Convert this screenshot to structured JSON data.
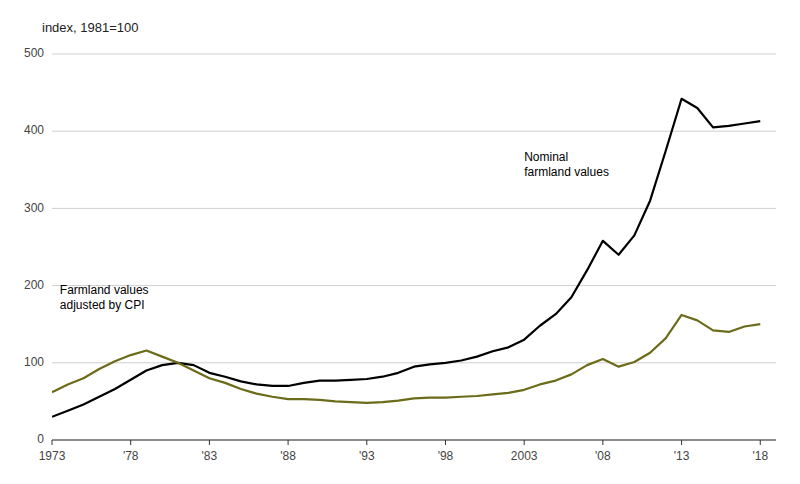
{
  "chart_data": {
    "type": "line",
    "title": "index, 1981=100",
    "x": [
      1973,
      1974,
      1975,
      1976,
      1977,
      1978,
      1979,
      1980,
      1981,
      1982,
      1983,
      1984,
      1985,
      1986,
      1987,
      1988,
      1989,
      1990,
      1991,
      1992,
      1993,
      1994,
      1995,
      1996,
      1997,
      1998,
      1999,
      2000,
      2001,
      2002,
      2003,
      2004,
      2005,
      2006,
      2007,
      2008,
      2009,
      2010,
      2011,
      2012,
      2013,
      2014,
      2015,
      2016,
      2017,
      2018
    ],
    "series": [
      {
        "color": "#000000",
        "values": [
          30,
          38,
          46,
          56,
          66,
          78,
          90,
          97,
          100,
          97,
          87,
          82,
          76,
          72,
          70,
          70,
          74,
          77,
          77,
          78,
          79,
          82,
          87,
          95,
          98,
          100,
          103,
          108,
          115,
          120,
          130,
          148,
          163,
          185,
          220,
          258,
          240,
          265,
          310,
          375,
          442,
          430,
          405,
          407,
          410,
          413
        ]
      },
      {
        "color": "#6b6b1a",
        "values": [
          62,
          72,
          80,
          92,
          102,
          110,
          116,
          108,
          100,
          90,
          80,
          74,
          66,
          60,
          56,
          53,
          53,
          52,
          50,
          49,
          48,
          49,
          51,
          54,
          55,
          55,
          56,
          57,
          59,
          61,
          65,
          72,
          77,
          85,
          97,
          105,
          95,
          101,
          113,
          132,
          162,
          155,
          142,
          140,
          147,
          150
        ]
      }
    ],
    "xlim": [
      1973,
      2019
    ],
    "xticks": [
      1973,
      {
        "value": 1978,
        "label": "'78"
      },
      {
        "value": 1983,
        "label": "'83"
      },
      {
        "value": 1988,
        "label": "'88"
      },
      {
        "value": 1993,
        "label": "'93"
      },
      {
        "value": 1998,
        "label": "'98"
      },
      2003,
      {
        "value": 2008,
        "label": "'08"
      },
      {
        "value": 2013,
        "label": "'13"
      },
      {
        "value": 2018,
        "label": "'18"
      }
    ],
    "ylim": [
      0,
      500
    ],
    "yticks": [
      0,
      100,
      200,
      300,
      400,
      500
    ],
    "grid": true,
    "annotations": [
      {
        "text": "Nominal\nfarmland values",
        "x": 2003,
        "y": 355
      },
      {
        "text": "Farmland values\nadjusted by CPI",
        "x": 1973.5,
        "y": 183
      }
    ]
  }
}
